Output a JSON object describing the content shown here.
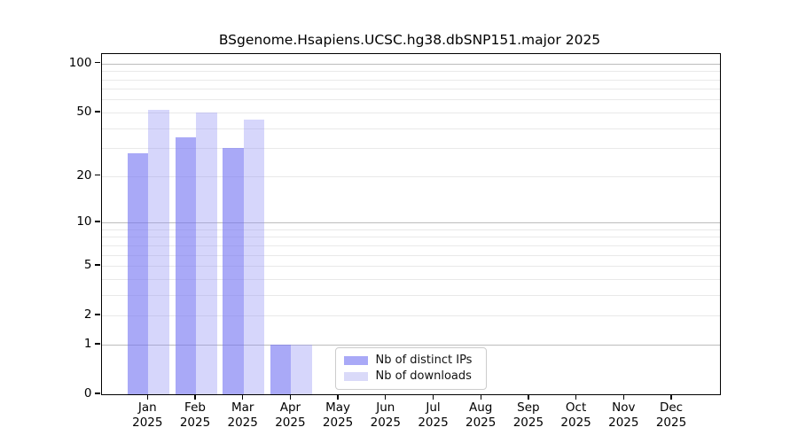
{
  "title": "BSgenome.Hsapiens.UCSC.hg38.dbSNP151.major 2025",
  "colors": {
    "bar_distinct_ips": "rgba(116,116,242,0.62)",
    "bar_downloads": "rgba(148,148,245,0.38)",
    "bar_distinct_ips_solid": "#a9a9f7",
    "bar_downloads_solid": "#dadaf9",
    "grid_minor": "#e9e9e9",
    "grid_major": "#bcbcbc",
    "axis": "#000000",
    "legend_border": "#cccccc"
  },
  "legend": {
    "items": [
      {
        "label": "Nb of distinct IPs",
        "color_key": "bar_distinct_ips"
      },
      {
        "label": "Nb of downloads",
        "color_key": "bar_downloads"
      }
    ]
  },
  "chart_data": {
    "type": "bar",
    "title": "BSgenome.Hsapiens.UCSC.hg38.dbSNP151.major 2025",
    "categories": [
      "Jan",
      "Feb",
      "Mar",
      "Apr",
      "May",
      "Jun",
      "Jul",
      "Aug",
      "Sep",
      "Oct",
      "Nov",
      "Dec"
    ],
    "year": "2025",
    "series": [
      {
        "name": "Nb of distinct IPs",
        "values": [
          28,
          35,
          30,
          1,
          0,
          0,
          0,
          0,
          0,
          0,
          0,
          0
        ]
      },
      {
        "name": "Nb of downloads",
        "values": [
          52,
          50,
          45,
          1,
          0,
          0,
          0,
          0,
          0,
          0,
          0,
          0
        ]
      }
    ],
    "yscale": "log1p",
    "ylim": [
      0,
      115
    ],
    "yticks": [
      100,
      50,
      20,
      10,
      5,
      2,
      1,
      0
    ],
    "gridlines_major": [
      1,
      10,
      100
    ],
    "gridlines_minor": [
      2,
      3,
      4,
      5,
      6,
      7,
      8,
      9,
      20,
      30,
      40,
      50,
      60,
      70,
      80,
      90
    ],
    "xlabel": "",
    "ylabel": "",
    "grid": true,
    "legend_position": "lower-center-left-of-middle"
  }
}
